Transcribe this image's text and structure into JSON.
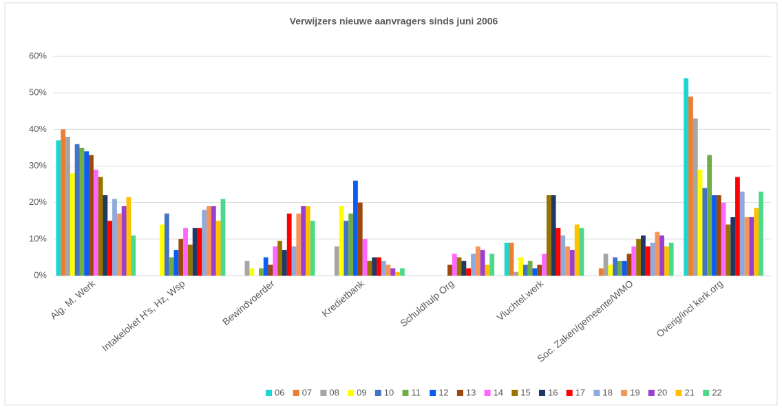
{
  "chart_data": {
    "type": "bar",
    "title": "Verwijzers nieuwe aanvragers sinds juni 2006",
    "categories": [
      "Alg. M. Werk",
      "Intakeloket H's, Hz, Wsp",
      "Bewindvoerder",
      "Kredietbank",
      "Schuldhulp Org",
      "Vluchtel.werk",
      "Soc. Zaken/gemeente/WMO",
      "Overig/incl kerk.org"
    ],
    "ylim": [
      0,
      60
    ],
    "yticks": [
      {
        "value": 0,
        "label": "0%"
      },
      {
        "value": 10,
        "label": "10%"
      },
      {
        "value": 20,
        "label": "20%"
      },
      {
        "value": 30,
        "label": "30%"
      },
      {
        "value": 40,
        "label": "40%"
      },
      {
        "value": 50,
        "label": "50%"
      },
      {
        "value": 60,
        "label": "60%"
      }
    ],
    "grid": true,
    "legend": "bottom",
    "series": [
      {
        "name": "06",
        "color": "#1ed6cf",
        "values": [
          37,
          0,
          0,
          0,
          0,
          9,
          0,
          54
        ]
      },
      {
        "name": "07",
        "color": "#ed7d31",
        "values": [
          40,
          0,
          0,
          0,
          0,
          9,
          2,
          49
        ]
      },
      {
        "name": "08",
        "color": "#a5a5a5",
        "values": [
          38,
          0,
          4,
          8,
          0,
          1,
          6,
          43
        ]
      },
      {
        "name": "09",
        "color": "#ffff00",
        "values": [
          28,
          14,
          2,
          19,
          0,
          5,
          3,
          29
        ]
      },
      {
        "name": "10",
        "color": "#4472c4",
        "values": [
          36,
          17,
          0,
          15,
          0,
          3,
          5,
          24
        ]
      },
      {
        "name": "11",
        "color": "#70ad47",
        "values": [
          35,
          5,
          2,
          17,
          0,
          4,
          4,
          33
        ]
      },
      {
        "name": "12",
        "color": "#0b5cf2",
        "values": [
          34,
          7,
          5,
          26,
          0,
          2,
          4,
          22
        ]
      },
      {
        "name": "13",
        "color": "#9e480e",
        "values": [
          33,
          10,
          3,
          20,
          3,
          3,
          6,
          22
        ]
      },
      {
        "name": "14",
        "color": "#ff66ff",
        "values": [
          29,
          13,
          8,
          10,
          6,
          6,
          8,
          20
        ]
      },
      {
        "name": "15",
        "color": "#997300",
        "values": [
          27,
          8.5,
          9.5,
          4,
          5,
          22,
          10,
          14
        ]
      },
      {
        "name": "16",
        "color": "#203864",
        "values": [
          22,
          13,
          7,
          5,
          4,
          22,
          11,
          16
        ]
      },
      {
        "name": "17",
        "color": "#ff0000",
        "values": [
          15,
          13,
          17,
          5,
          2,
          13,
          8,
          27
        ]
      },
      {
        "name": "18",
        "color": "#8faadc",
        "values": [
          21,
          18,
          8,
          4,
          6,
          11,
          9,
          23
        ]
      },
      {
        "name": "19",
        "color": "#f4955a",
        "values": [
          17,
          19,
          17,
          3,
          8,
          8,
          12,
          16
        ]
      },
      {
        "name": "20",
        "color": "#9b3fd1",
        "values": [
          19,
          19,
          19,
          2,
          7,
          7,
          11,
          16
        ]
      },
      {
        "name": "21",
        "color": "#ffc000",
        "values": [
          21.5,
          15,
          19,
          1,
          3,
          14,
          8,
          18.5
        ]
      },
      {
        "name": "22",
        "color": "#4dd98a",
        "values": [
          11,
          21,
          15,
          2,
          6,
          13,
          9,
          23
        ]
      }
    ]
  }
}
